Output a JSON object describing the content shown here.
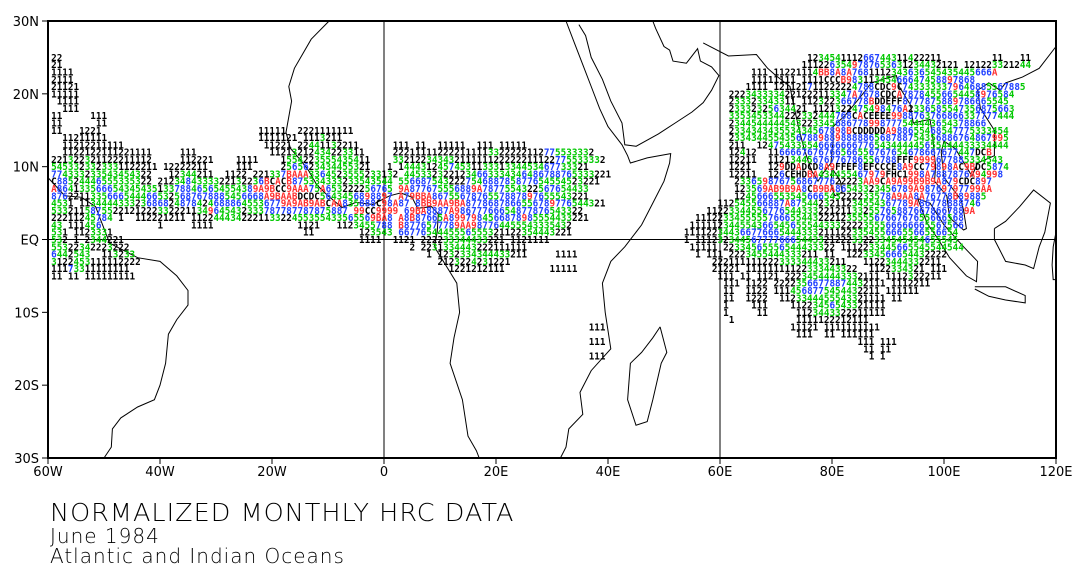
{
  "title": "NORMALIZED MONTHLY HRC DATA",
  "subtitle": "June 1984",
  "region": "Atlantic and Indian Oceans",
  "map": {
    "lon_range": [
      -60,
      120
    ],
    "lat_range": [
      -30,
      30
    ],
    "x_ticks": [
      {
        "lon": -60,
        "label": "60W"
      },
      {
        "lon": -40,
        "label": "40W"
      },
      {
        "lon": -20,
        "label": "20W"
      },
      {
        "lon": 0,
        "label": "0"
      },
      {
        "lon": 20,
        "label": "20E"
      },
      {
        "lon": 40,
        "label": "40E"
      },
      {
        "lon": 60,
        "label": "60E"
      },
      {
        "lon": 80,
        "label": "80E"
      },
      {
        "lon": 100,
        "label": "100E"
      },
      {
        "lon": 120,
        "label": "120E"
      }
    ],
    "y_ticks": [
      {
        "lat": 30,
        "label": "30N"
      },
      {
        "lat": 20,
        "label": "20N"
      },
      {
        "lat": 10,
        "label": "10N"
      },
      {
        "lat": 0,
        "label": "EQ"
      },
      {
        "lat": -10,
        "label": "10S"
      },
      {
        "lat": -20,
        "label": "20S"
      },
      {
        "lat": -30,
        "label": "30S"
      }
    ],
    "reference_lines": {
      "meridians": [
        0,
        60
      ],
      "parallels": [
        0
      ]
    }
  },
  "colors": {
    "low": "#000000",
    "mid": "#00c800",
    "high": "#2040ff",
    "very_high": "#ff3030",
    "extreme": "#000000"
  },
  "grid_rows": [
    {
      "lat": 25,
      "lon": -59,
      "values": "22"
    },
    {
      "lat": 24,
      "lon": -59,
      "values": "21"
    },
    {
      "lat": 23,
      "lon": -59,
      "values": "1111"
    },
    {
      "lat": 22,
      "lon": -59,
      "values": "2111"
    },
    {
      "lat": 21,
      "lon": -59,
      "values": "21121"
    },
    {
      "lat": 20,
      "lon": -59,
      "values": "11111"
    },
    {
      "lat": 19,
      "lon": -58,
      "values": "1111"
    },
    {
      "lat": 18,
      "lon": -57,
      "values": "111"
    },
    {
      "lat": 17,
      "lon": -59,
      "values": "11     111"
    },
    {
      "lat": 16,
      "lon": -59,
      "values": "11      11"
    },
    {
      "lat": 15,
      "lon": -59,
      "values": "11   1221                            11111  2221111111"
    },
    {
      "lat": 14,
      "lon": -59,
      "values": "  11211111                           1111121 1113211"
    },
    {
      "lat": 13,
      "lon": -58,
      "values": " 11212211111                         11221 22441132211"
    },
    {
      "lat": 12,
      "lon": -58,
      "values": " 1122122111221111     111             11213212434223311"
    },
    {
      "lat": 11,
      "lon": -59,
      "values": "221322321122211112     112221    1111    1554223555435411"
    },
    {
      "lat": 10,
      "lon": -59,
      "values": "5453323323331122211 12222211     111     2565623434455321   1"
    },
    {
      "lat": 9,
      "lon": -59,
      "values": "774333233543454322   12344211  1122 221337BAAA3364523555233132"
    },
    {
      "lat": 8,
      "lon": -59,
      "values": "C88524446555335322 2123484333322132236BCACB875334333233543544"
    },
    {
      "lat": 7,
      "lon": -59,
      "values": "A864133566654345435133788465654554389A9BCC9AAA75A653222256765"
    },
    {
      "lat": 6,
      "lon": -59,
      "values": "87622113356665444665325687678885456668A9BAABDCDC5643456898897"
    },
    {
      "lat": 5,
      "lon": -59,
      "values": "4531 1134444333236868248784246888645536779A9AB9ABCAA835888C98A87"
    },
    {
      "lat": 4,
      "lon": -59,
      "values": "53321158755221212223322211349645432333787787787875887 99CC9999"
    },
    {
      "lat": 3,
      "lon": -59,
      "values": "22211245784 1  112221211 112244434222113322455355433565569BA8"
    },
    {
      "lat": 2,
      "lon": -59,
      "values": "43 111456          1     1111               1121   1123455788"
    },
    {
      "lat": 1,
      "lon": -59,
      "values": "531 1123331                                  11        123543"
    },
    {
      "lat": 0,
      "lon": -59,
      "values": "532 1 2344221                                          1111"
    },
    {
      "lat": -1,
      "lon": -59,
      "values": "55322342223222"
    },
    {
      "lat": -2,
      "lon": -59,
      "values": "6442543  113233"
    },
    {
      "lat": -3,
      "lon": -59,
      "values": "3122453111112222"
    },
    {
      "lat": -4,
      "lon": -59,
      "values": "11173311111111"
    },
    {
      "lat": -5,
      "lon": -59,
      "values": "11 11 111111111"
    },
    {
      "lat": 13,
      "lon": 2,
      "values": "111 11  11111  111 11111"
    },
    {
      "lat": 12,
      "lon": 2,
      "values": "222111112222111113322222112775533332"
    },
    {
      "lat": 11,
      "lon": 2,
      "values": "33212234343211111122222211122775533332"
    },
    {
      "lat": 10,
      "lon": 2,
      "values": "1444312457453113331334453467733321"
    },
    {
      "lat": 9,
      "lon": 2,
      "values": "4453323221234663334346486788765333221"
    },
    {
      "lat": 8,
      "lon": 2,
      "values": "556687543222754688785877654554523221"
    },
    {
      "lat": 7,
      "lon": 2,
      "values": "9A877675556889A7877554322567654433"
    },
    {
      "lat": 6,
      "lon": 2,
      "values": "A79BBA8675567876557887897655543221"
    },
    {
      "lat": 5,
      "lon": 2,
      "values": "8BB9AA9BA8778687866556789776544321"
    },
    {
      "lat": 4,
      "lon": 2,
      "values": "69BA8887A98677766654877876543322"
    },
    {
      "lat": 3,
      "lon": 2,
      "values": "A8B87665A8997984566878985554433221"
    },
    {
      "lat": 2,
      "lon": 2,
      "values": "B8776577789AA987764455543335432"
    },
    {
      "lat": 1,
      "lon": 2,
      "values": "6677654445556555321122354443221"
    },
    {
      "lat": 0,
      "lon": 2,
      "values": "1121 222233344433221 1121111"
    },
    {
      "lat": -1,
      "lon": 5,
      "values": "2 2231334443222111111"
    },
    {
      "lat": -2,
      "lon": 8,
      "values": "1 1232334344433211"
    },
    {
      "lat": -3,
      "lon": 10,
      "values": "2123224231221"
    },
    {
      "lat": -4,
      "lon": 12,
      "values": "1221212111"
    },
    {
      "lat": 25,
      "lon": 76,
      "values": "123454111266744311422211         11   11"
    },
    {
      "lat": 24,
      "lon": 75,
      "values": "1112263549787653631234432121 121223321244"
    },
    {
      "lat": 23,
      "lon": 66,
      "values": "111 11221114BB8A8A7681112343636545435445666A"
    },
    {
      "lat": 22,
      "lon": 66,
      "values": "11111111 1111CCCB98311345466647458897868"
    },
    {
      "lat": 21,
      "lon": 65,
      "values": "1111 121121711222224788CDC9C7433333379646885567885"
    },
    {
      "lat": 20,
      "lon": 62,
      "values": "2223433334221222113347A7678CDCA78784556654458976584"
    },
    {
      "lat": 19,
      "lon": 62,
      "values": "233323343311 112322366778BDDEFF8777875889786665545"
    },
    {
      "lat": 18,
      "lon": 62,
      "values": "23332325634421 1121322475498476A2336585547356875663"
    },
    {
      "lat": 17,
      "lon": 62,
      "values": "3353453344222332444768CACEEEE9988763766866337777444"
    },
    {
      "lat": 16,
      "lon": 62,
      "values": "2344544444543223345686778998777544443654378866"
    },
    {
      "lat": 15,
      "lon": 62,
      "values": "233434343553434567898BCDDDDDA988655468547775333454"
    },
    {
      "lat": 14,
      "lon": 62,
      "values": "23343445543567889889888886568788754356886764867995"
    },
    {
      "lat": 13,
      "lon": 62,
      "values": "211  124754335546666666776543444445655444433334444"
    },
    {
      "lat": 12,
      "lon": 62,
      "values": "12412  1166667676766566556767654678667677447DCB"
    },
    {
      "lat": 11,
      "lon": 62,
      "values": "12211  11213445676776786556788FFF9999677885334543"
    },
    {
      "lat": 10,
      "lon": 62,
      "values": "1221   129DDADCD8A9FFEF8EFCCCE8A9CC79898AC9BDC5874"
    },
    {
      "lat": 9,
      "lon": 62,
      "values": "12211  126CEHDBA434455467979FHC1998A7887876A94998"
    },
    {
      "lat": 8,
      "lon": 63,
      "values": "23365987675686777622223AA9CA9A99B9B9A879CDC897"
    },
    {
      "lat": 7,
      "lon": 63,
      "values": "123569AB9B9A8CB9BA86543323456789A98769797799AA"
    },
    {
      "lat": 6,
      "lon": 63,
      "values": "1245666553545666543222233578A9AA8A76778B89885"
    },
    {
      "lat": 5,
      "lon": 60,
      "values": "112545566887A8754423211234554367789A86778888746"
    },
    {
      "lat": 4,
      "lon": 58,
      "values": "11223344556776544333221211332557658876678667889A"
    },
    {
      "lat": 3,
      "lon": 56,
      "values": "111223345555576665544322212355556766767655666568"
    },
    {
      "lat": 2,
      "lon": 55,
      "values": "1111123445543665456555443332222355566666665567566"
    },
    {
      "lat": 1,
      "lon": 54,
      "values": "1111223443667766654443332111223354556665566556654"
    },
    {
      "lat": 0,
      "lon": 54,
      "values": "1 11123234456777766654433212223322334545454655545"
    },
    {
      "lat": -1,
      "lon": 55,
      "values": "11111 22334565556544433322 1112233445665545544544"
    },
    {
      "lat": -2,
      "lon": 56,
      "values": "1 111 2223455444333211 11  122334566654432222"
    },
    {
      "lat": -3,
      "lon": 59,
      "values": "222111111222333344433211   11223444332211"
    },
    {
      "lat": -4,
      "lon": 59,
      "values": "21221 11111111122333443322  1122334321 111"
    },
    {
      "lat": -5,
      "lon": 60,
      "values": "111 11 1121 22234544443332111 1112322211"
    },
    {
      "lat": -6,
      "lon": 61,
      "values": "111 1122 22223566778874432111 1112211"
    },
    {
      "lat": -7,
      "lon": 61,
      "values": "11  1122 1114568775454432211 111111"
    },
    {
      "lat": -8,
      "lon": 61,
      "values": "11  1222  1123344455543321111 11"
    },
    {
      "lat": -9,
      "lon": 61,
      "values": "1    111    11223456543321111"
    },
    {
      "lat": -10,
      "lon": 61,
      "values": "1     11     1123443322211111"
    },
    {
      "lat": -11,
      "lon": 62,
      "values": "1           1111122212111"
    },
    {
      "lat": -12,
      "lon": 73,
      "values": "11121 1111111111"
    },
    {
      "lat": -13,
      "lon": 74,
      "values": "111  11 111111"
    },
    {
      "lat": -14,
      "lon": 85,
      "values": "111 111"
    },
    {
      "lat": -15,
      "lon": 86,
      "values": "11 11"
    },
    {
      "lat": -16,
      "lon": 87,
      "values": "1 1"
    },
    {
      "lat": -2,
      "lon": 31,
      "values": "1111"
    },
    {
      "lat": -4,
      "lon": 30,
      "values": "11111"
    },
    {
      "lat": -12,
      "lon": 37,
      "values": "111"
    },
    {
      "lat": -14,
      "lon": 37,
      "values": "111"
    },
    {
      "lat": -16,
      "lon": 37,
      "values": "111"
    }
  ]
}
